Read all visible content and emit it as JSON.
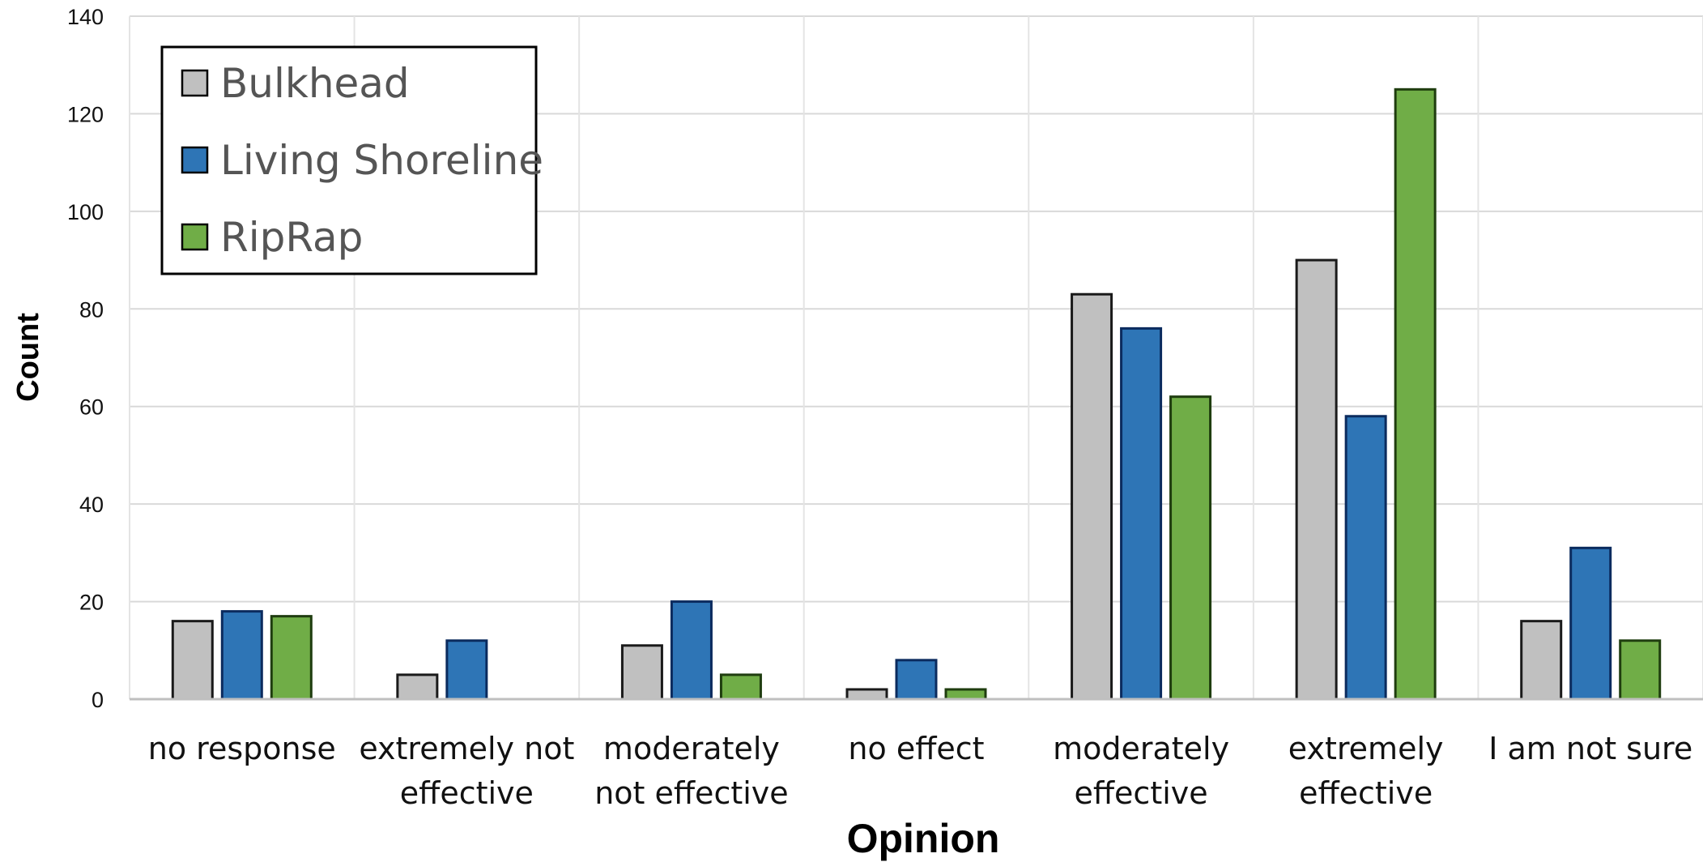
{
  "chart_data": {
    "type": "bar",
    "title": "",
    "xlabel": "Opinion",
    "ylabel": "Count",
    "ylim": [
      0,
      140
    ],
    "yticks": [
      0,
      20,
      40,
      60,
      80,
      100,
      120,
      140
    ],
    "grid": true,
    "legend_position": "top-left",
    "categories": [
      [
        "no response"
      ],
      [
        "extremely not",
        "effective"
      ],
      [
        "moderately",
        "not effective"
      ],
      [
        "no effect"
      ],
      [
        "moderately",
        "effective"
      ],
      [
        "extremely",
        "effective"
      ],
      [
        "I am not sure"
      ]
    ],
    "series": [
      {
        "name": "Bulkhead",
        "color": "#c0c0c0",
        "values": [
          16,
          5,
          11,
          2,
          83,
          90,
          16
        ]
      },
      {
        "name": "Living Shoreline",
        "color": "#2e75b6",
        "values": [
          18,
          12,
          20,
          8,
          76,
          58,
          31
        ]
      },
      {
        "name": "RipRap",
        "color": "#70ad47",
        "values": [
          17,
          0,
          5,
          2,
          62,
          125,
          12
        ]
      }
    ]
  }
}
